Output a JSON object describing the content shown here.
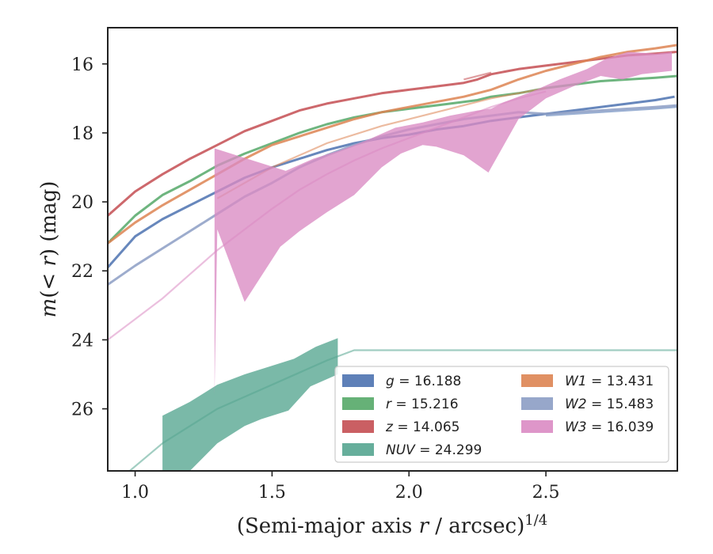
{
  "chart_data": {
    "type": "line",
    "title": "",
    "xlabel": "(Semi-major axis r / arcsec)^1/4",
    "ylabel": "m(< r) (mag)",
    "xlim": [
      0.9,
      2.98
    ],
    "ylim": [
      27.8,
      14.95
    ],
    "y_inverted": true,
    "xticks": [
      1.0,
      1.5,
      2.0,
      2.5
    ],
    "xtick_labels": [
      "1.0",
      "1.5",
      "2.0",
      "2.5"
    ],
    "yticks": [
      16,
      18,
      20,
      22,
      24,
      26
    ],
    "ytick_labels": [
      "16",
      "18",
      "20",
      "22",
      "24",
      "26"
    ],
    "grid": false,
    "legend_position": "bottom-right",
    "series": [
      {
        "name": "g = 16.188",
        "legend_label": "g = 16.188",
        "color": "#4c72b0",
        "curve": [
          [
            0.9,
            21.9
          ],
          [
            1.0,
            21.0
          ],
          [
            1.1,
            20.5
          ],
          [
            1.2,
            20.1
          ],
          [
            1.3,
            19.7
          ],
          [
            1.4,
            19.3
          ],
          [
            1.5,
            19.0
          ],
          [
            1.6,
            18.75
          ],
          [
            1.7,
            18.5
          ],
          [
            1.8,
            18.3
          ],
          [
            1.9,
            18.15
          ],
          [
            2.0,
            18.05
          ],
          [
            2.1,
            17.9
          ],
          [
            2.2,
            17.8
          ],
          [
            2.3,
            17.65
          ],
          [
            2.4,
            17.55
          ],
          [
            2.5,
            17.45
          ],
          [
            2.6,
            17.35
          ],
          [
            2.7,
            17.25
          ],
          [
            2.8,
            17.15
          ],
          [
            2.9,
            17.05
          ],
          [
            2.97,
            16.95
          ]
        ],
        "model": [
          [
            2.5,
            17.5
          ],
          [
            2.7,
            17.4
          ],
          [
            2.9,
            17.3
          ],
          [
            2.98,
            17.25
          ]
        ]
      },
      {
        "name": "r = 15.216",
        "legend_label": "r = 15.216",
        "color": "#55a868",
        "curve": [
          [
            0.9,
            21.2
          ],
          [
            1.0,
            20.4
          ],
          [
            1.1,
            19.8
          ],
          [
            1.2,
            19.4
          ],
          [
            1.3,
            18.95
          ],
          [
            1.4,
            18.6
          ],
          [
            1.5,
            18.3
          ],
          [
            1.6,
            18.0
          ],
          [
            1.7,
            17.75
          ],
          [
            1.8,
            17.55
          ],
          [
            1.9,
            17.4
          ],
          [
            2.0,
            17.3
          ],
          [
            2.1,
            17.2
          ],
          [
            2.2,
            17.1
          ],
          [
            2.25,
            17.05
          ],
          [
            2.3,
            16.95
          ],
          [
            2.4,
            16.85
          ],
          [
            2.5,
            16.7
          ],
          [
            2.6,
            16.6
          ],
          [
            2.7,
            16.5
          ],
          [
            2.8,
            16.45
          ],
          [
            2.9,
            16.4
          ],
          [
            2.98,
            16.35
          ]
        ],
        "model": []
      },
      {
        "name": "z = 14.065",
        "legend_label": "z = 14.065",
        "color": "#c44e52",
        "curve": [
          [
            0.9,
            20.4
          ],
          [
            1.0,
            19.7
          ],
          [
            1.1,
            19.2
          ],
          [
            1.2,
            18.75
          ],
          [
            1.3,
            18.35
          ],
          [
            1.4,
            17.95
          ],
          [
            1.5,
            17.65
          ],
          [
            1.6,
            17.35
          ],
          [
            1.7,
            17.15
          ],
          [
            1.8,
            17.0
          ],
          [
            1.9,
            16.85
          ],
          [
            2.0,
            16.75
          ],
          [
            2.1,
            16.65
          ],
          [
            2.2,
            16.55
          ],
          [
            2.25,
            16.45
          ],
          [
            2.3,
            16.3
          ],
          [
            2.4,
            16.15
          ],
          [
            2.5,
            16.05
          ],
          [
            2.6,
            15.95
          ],
          [
            2.7,
            15.85
          ],
          [
            2.8,
            15.75
          ],
          [
            2.9,
            15.7
          ],
          [
            2.98,
            15.65
          ]
        ],
        "model": [
          [
            2.2,
            16.45
          ],
          [
            2.3,
            16.25
          ]
        ]
      },
      {
        "name": "NUV = 24.299",
        "legend_label": "NUV = 24.299",
        "color": "#55a590",
        "band_upper": [
          [
            1.1,
            26.2
          ],
          [
            1.2,
            25.8
          ],
          [
            1.3,
            25.3
          ],
          [
            1.4,
            25.0
          ],
          [
            1.5,
            24.75
          ],
          [
            1.58,
            24.55
          ],
          [
            1.66,
            24.2
          ],
          [
            1.74,
            23.95
          ]
        ],
        "band_lower": [
          [
            1.1,
            28.2
          ],
          [
            1.2,
            27.8
          ],
          [
            1.3,
            27.0
          ],
          [
            1.4,
            26.5
          ],
          [
            1.46,
            26.3
          ],
          [
            1.56,
            26.05
          ],
          [
            1.64,
            25.35
          ],
          [
            1.74,
            25.0
          ]
        ],
        "model": [
          [
            0.98,
            27.8
          ],
          [
            1.1,
            27.0
          ],
          [
            1.3,
            26.0
          ],
          [
            1.5,
            25.3
          ],
          [
            1.7,
            24.6
          ],
          [
            1.8,
            24.3
          ],
          [
            2.0,
            24.3
          ],
          [
            2.5,
            24.3
          ],
          [
            2.98,
            24.3
          ]
        ]
      },
      {
        "name": "W1 = 13.431",
        "legend_label": "W1 = 13.431",
        "color": "#dd8452",
        "curve": [
          [
            0.9,
            21.2
          ],
          [
            1.0,
            20.6
          ],
          [
            1.1,
            20.1
          ],
          [
            1.2,
            19.65
          ],
          [
            1.3,
            19.2
          ],
          [
            1.4,
            18.75
          ],
          [
            1.5,
            18.35
          ],
          [
            1.6,
            18.1
          ],
          [
            1.7,
            17.85
          ],
          [
            1.8,
            17.6
          ],
          [
            1.9,
            17.4
          ],
          [
            2.0,
            17.25
          ],
          [
            2.1,
            17.1
          ],
          [
            2.2,
            16.95
          ],
          [
            2.3,
            16.75
          ],
          [
            2.4,
            16.45
          ],
          [
            2.5,
            16.2
          ],
          [
            2.6,
            16.0
          ],
          [
            2.7,
            15.8
          ],
          [
            2.8,
            15.65
          ],
          [
            2.9,
            15.55
          ],
          [
            2.98,
            15.45
          ]
        ],
        "model": [
          [
            1.3,
            19.9
          ],
          [
            1.5,
            19.0
          ],
          [
            1.7,
            18.3
          ],
          [
            1.9,
            17.8
          ],
          [
            2.1,
            17.4
          ],
          [
            2.3,
            17.0
          ],
          [
            2.5,
            16.7
          ]
        ]
      },
      {
        "name": "W2 = 15.483",
        "legend_label": "W2 = 15.483",
        "color": "#8c9dc4",
        "curve": [
          [
            0.9,
            22.4
          ],
          [
            1.0,
            21.85
          ],
          [
            1.1,
            21.35
          ],
          [
            1.2,
            20.85
          ],
          [
            1.3,
            20.35
          ],
          [
            1.4,
            19.85
          ],
          [
            1.5,
            19.45
          ],
          [
            1.6,
            19.0
          ],
          [
            1.7,
            18.65
          ],
          [
            1.8,
            18.35
          ],
          [
            1.9,
            18.1
          ],
          [
            2.0,
            17.9
          ],
          [
            2.1,
            17.75
          ],
          [
            2.2,
            17.6
          ],
          [
            2.3,
            17.5
          ],
          [
            2.4,
            17.4
          ],
          [
            2.5,
            17.45
          ],
          [
            2.6,
            17.4
          ],
          [
            2.7,
            17.35
          ],
          [
            2.8,
            17.3
          ],
          [
            2.9,
            17.25
          ],
          [
            2.98,
            17.2
          ]
        ],
        "model": []
      },
      {
        "name": "W3 = 16.039",
        "legend_label": "W3 = 16.039",
        "color": "#da8bc3",
        "band_upper": [
          [
            1.29,
            18.45
          ],
          [
            1.45,
            18.85
          ],
          [
            1.55,
            19.1
          ],
          [
            1.65,
            18.75
          ],
          [
            1.75,
            18.5
          ],
          [
            1.85,
            18.2
          ],
          [
            1.95,
            17.85
          ],
          [
            2.05,
            17.7
          ],
          [
            2.15,
            17.5
          ],
          [
            2.25,
            17.35
          ],
          [
            2.3,
            17.3
          ],
          [
            2.35,
            17.1
          ],
          [
            2.45,
            16.8
          ],
          [
            2.55,
            16.45
          ],
          [
            2.65,
            16.15
          ],
          [
            2.72,
            15.85
          ],
          [
            2.8,
            15.65
          ],
          [
            2.9,
            15.7
          ],
          [
            2.96,
            15.65
          ]
        ],
        "band_lower": [
          [
            1.29,
            25.6
          ],
          [
            1.3,
            20.8
          ],
          [
            1.4,
            22.9
          ],
          [
            1.53,
            21.3
          ],
          [
            1.6,
            20.85
          ],
          [
            1.7,
            20.3
          ],
          [
            1.8,
            19.8
          ],
          [
            1.9,
            19.0
          ],
          [
            1.97,
            18.6
          ],
          [
            2.05,
            18.35
          ],
          [
            2.1,
            18.4
          ],
          [
            2.2,
            18.65
          ],
          [
            2.29,
            19.15
          ],
          [
            2.4,
            17.6
          ],
          [
            2.5,
            17.0
          ],
          [
            2.6,
            16.65
          ],
          [
            2.7,
            16.35
          ],
          [
            2.78,
            16.45
          ],
          [
            2.85,
            16.3
          ],
          [
            2.96,
            16.2
          ]
        ],
        "model": [
          [
            0.9,
            24.0
          ],
          [
            1.0,
            23.4
          ],
          [
            1.1,
            22.8
          ],
          [
            1.2,
            22.1
          ],
          [
            1.3,
            21.4
          ],
          [
            1.4,
            20.8
          ],
          [
            1.5,
            20.2
          ],
          [
            1.6,
            19.65
          ],
          [
            1.7,
            19.2
          ],
          [
            1.8,
            18.8
          ],
          [
            1.9,
            18.45
          ],
          [
            2.0,
            18.15
          ],
          [
            2.1,
            17.85
          ],
          [
            2.2,
            17.55
          ],
          [
            2.3,
            17.25
          ],
          [
            2.4,
            17.0
          ],
          [
            2.5,
            16.8
          ]
        ]
      }
    ]
  },
  "legend": {
    "col1": [
      "g = 16.188",
      "r = 15.216",
      "z = 14.065",
      "NUV = 24.299"
    ],
    "col2": [
      "W1 = 13.431",
      "W2 = 15.483",
      "W3 = 16.039"
    ],
    "colors_col1": [
      "#4c72b0",
      "#55a868",
      "#c44e52",
      "#55a590"
    ],
    "colors_col2": [
      "#dd8452",
      "#8c9dc4",
      "#da8bc3"
    ]
  }
}
